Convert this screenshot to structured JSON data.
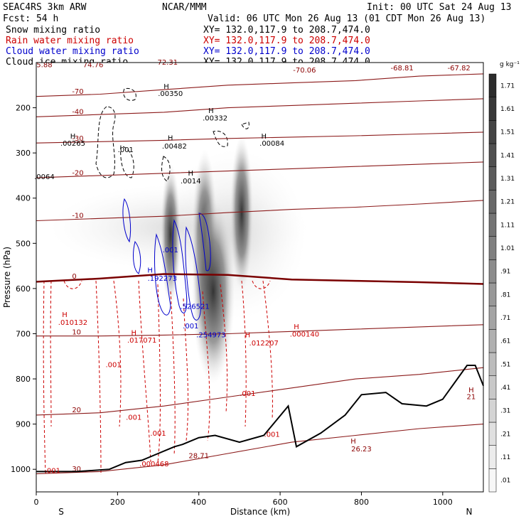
{
  "header": {
    "left1": "SEAC4RS  3km ARW",
    "center1": "NCAR/MMM",
    "right1": "Init: 00 UTC Sat 24 Aug 13",
    "fcst": "Fcst:   54 h",
    "valid": "Valid: 06 UTC Mon 26 Aug 13 (01 CDT Mon 26 Aug 13)"
  },
  "legend": [
    {
      "label": "Snow mixing ratio",
      "xy": "XY= 132.0,117.9 to 208.7,474.0",
      "color": "#000000"
    },
    {
      "label": "Rain water mixing ratio",
      "xy": "XY= 132.0,117.9 to 208.7,474.0",
      "color": "#cc0000"
    },
    {
      "label": "Cloud water mixing ratio",
      "xy": "XY= 132.0,117.9 to 208.7,474.0",
      "color": "#0000cc"
    },
    {
      "label": "Cloud ice mixing ratio",
      "xy": "XY= 132.0,117.9 to 208.7,474.0",
      "color": "#000000"
    }
  ],
  "chart_data": {
    "type": "contour",
    "xlabel": "Distance (km)",
    "ylabel": "Pressure (hPa)",
    "x_ticks": [
      0,
      200,
      400,
      600,
      800,
      1000
    ],
    "y_ticks": [
      200,
      300,
      400,
      500,
      600,
      700,
      800,
      900,
      1000
    ],
    "xlim": [
      0,
      1100
    ],
    "ylim": [
      1050,
      100
    ],
    "x_endpoints": {
      "left": "S",
      "right": "N"
    },
    "colorbar": {
      "unit": "g kg⁻¹",
      "levels": [
        ".01",
        ".11",
        ".21",
        ".31",
        ".41",
        ".51",
        ".61",
        ".71",
        ".81",
        ".91",
        "1.01",
        "1.11",
        "1.21",
        "1.31",
        "1.41",
        "1.51",
        "1.61",
        "1.71"
      ],
      "colors": [
        "#f7f7f7",
        "#ececec",
        "#e0e0e0",
        "#d4d4d4",
        "#c8c8c8",
        "#bcbcbc",
        "#b0b0b0",
        "#a4a4a4",
        "#989898",
        "#8c8c8c",
        "#808080",
        "#747474",
        "#686868",
        "#5c5c5c",
        "#505050",
        "#444444",
        "#383838",
        "#2c2c2c"
      ]
    },
    "temperature_isotherms": [
      {
        "label": "-70",
        "y": [
          175,
          170,
          160,
          150,
          145,
          140,
          130,
          125
        ]
      },
      {
        "label": "-40",
        "y": [
          220,
          215,
          210,
          200,
          195,
          190,
          185,
          180
        ]
      },
      {
        "label": "-30",
        "y": [
          278,
          275,
          272,
          268,
          265,
          262,
          258,
          254
        ]
      },
      {
        "label": "-20",
        "y": [
          355,
          350,
          345,
          340,
          335,
          330,
          325,
          320
        ]
      },
      {
        "label": "-10",
        "y": [
          450,
          445,
          440,
          432,
          425,
          420,
          413,
          405
        ]
      },
      {
        "label": "0",
        "y": [
          585,
          578,
          568,
          570,
          580,
          583,
          586,
          590
        ]
      },
      {
        "label": "10",
        "y": [
          705,
          705,
          703,
          700,
          695,
          690,
          685,
          680
        ]
      },
      {
        "label": "20",
        "y": [
          880,
          875,
          860,
          840,
          820,
          800,
          790,
          775
        ]
      },
      {
        "label": "30",
        "y": [
          1010,
          1005,
          990,
          965,
          940,
          925,
          910,
          900
        ]
      }
    ],
    "terrain": {
      "x": [
        0,
        100,
        180,
        220,
        260,
        300,
        340,
        360,
        400,
        440,
        500,
        560,
        620,
        640,
        700,
        760,
        800,
        860,
        900,
        960,
        1000,
        1060,
        1080,
        1100
      ],
      "p": [
        1005,
        1005,
        1000,
        985,
        980,
        965,
        950,
        945,
        930,
        925,
        940,
        925,
        860,
        950,
        920,
        880,
        835,
        830,
        855,
        860,
        845,
        770,
        770,
        815
      ]
    },
    "annotations": [
      {
        "text": "5.88",
        "x": 20,
        "p": 110,
        "color": "#8b0000"
      },
      {
        "text": "74.76",
        "x": 140,
        "p": 110,
        "color": "#8b0000"
      },
      {
        "text": "-72.31",
        "x": 320,
        "p": 105,
        "color": "#8b0000"
      },
      {
        "text": "-70.06",
        "x": 660,
        "p": 122,
        "color": "#8b0000"
      },
      {
        "text": "-68.81",
        "x": 900,
        "p": 117,
        "color": "#8b0000"
      },
      {
        "text": "-67.82",
        "x": 1040,
        "p": 117,
        "color": "#8b0000"
      },
      {
        "text": "H",
        "x": 320,
        "p": 158,
        "color": "#000000"
      },
      {
        "text": ".00350",
        "x": 330,
        "p": 174,
        "color": "#000000"
      },
      {
        "text": "H",
        "x": 430,
        "p": 212,
        "color": "#000000"
      },
      {
        "text": ".00332",
        "x": 440,
        "p": 228,
        "color": "#000000"
      },
      {
        "text": "H",
        "x": 90,
        "p": 268,
        "color": "#000000"
      },
      {
        "text": ".00265",
        "x": 90,
        "p": 284,
        "color": "#000000"
      },
      {
        "text": "H",
        "x": 330,
        "p": 272,
        "color": "#000000"
      },
      {
        "text": ".00482",
        "x": 340,
        "p": 290,
        "color": "#000000"
      },
      {
        "text": "H",
        "x": 560,
        "p": 268,
        "color": "#000000"
      },
      {
        "text": ".00084",
        "x": 580,
        "p": 284,
        "color": "#000000"
      },
      {
        "text": ".001",
        "x": 220,
        "p": 298,
        "color": "#000000"
      },
      {
        "text": ".0064",
        "x": 20,
        "p": 358,
        "color": "#000000"
      },
      {
        "text": "H",
        "x": 380,
        "p": 350,
        "color": "#000000"
      },
      {
        "text": ".0014",
        "x": 380,
        "p": 367,
        "color": "#000000"
      },
      {
        "text": "H",
        "x": 280,
        "p": 565,
        "color": "#0000cc"
      },
      {
        "text": ".192273",
        "x": 310,
        "p": 583,
        "color": "#0000cc"
      },
      {
        "text": ".001",
        "x": 330,
        "p": 520,
        "color": "#0000cc"
      },
      {
        "text": ".526521",
        "x": 390,
        "p": 645,
        "color": "#0000cc"
      },
      {
        "text": ".001",
        "x": 380,
        "p": 688,
        "color": "#0000cc"
      },
      {
        "text": ".254973",
        "x": 430,
        "p": 708,
        "color": "#0000cc"
      },
      {
        "text": "H",
        "x": 70,
        "p": 663,
        "color": "#cc0000"
      },
      {
        "text": ".010132",
        "x": 90,
        "p": 680,
        "color": "#cc0000"
      },
      {
        "text": "H",
        "x": 240,
        "p": 703,
        "color": "#cc0000"
      },
      {
        "text": ".017071",
        "x": 260,
        "p": 720,
        "color": "#cc0000"
      },
      {
        "text": "H",
        "x": 520,
        "p": 708,
        "color": "#cc0000"
      },
      {
        "text": ".012207",
        "x": 560,
        "p": 726,
        "color": "#cc0000"
      },
      {
        "text": "H",
        "x": 640,
        "p": 690,
        "color": "#cc0000"
      },
      {
        "text": ".000140",
        "x": 660,
        "p": 706,
        "color": "#cc0000"
      },
      {
        "text": ".001",
        "x": 190,
        "p": 774,
        "color": "#cc0000"
      },
      {
        "text": ".001",
        "x": 520,
        "p": 838,
        "color": "#cc0000"
      },
      {
        "text": ".001",
        "x": 240,
        "p": 890,
        "color": "#cc0000"
      },
      {
        "text": ".001",
        "x": 300,
        "p": 926,
        "color": "#cc0000"
      },
      {
        "text": ".001",
        "x": 580,
        "p": 928,
        "color": "#cc0000"
      },
      {
        "text": ".001",
        "x": 40,
        "p": 1008,
        "color": "#cc0000"
      },
      {
        "text": ".000468",
        "x": 290,
        "p": 993,
        "color": "#cc0000"
      },
      {
        "text": "H",
        "x": 780,
        "p": 943,
        "color": "#8b0000"
      },
      {
        "text": "26.23",
        "x": 800,
        "p": 960,
        "color": "#8b0000"
      },
      {
        "text": "H",
        "x": 1070,
        "p": 830,
        "color": "#8b0000"
      },
      {
        "text": "21",
        "x": 1070,
        "p": 845,
        "color": "#8b0000"
      },
      {
        "text": "28.71",
        "x": 400,
        "p": 975,
        "color": "#8b0000"
      }
    ]
  }
}
